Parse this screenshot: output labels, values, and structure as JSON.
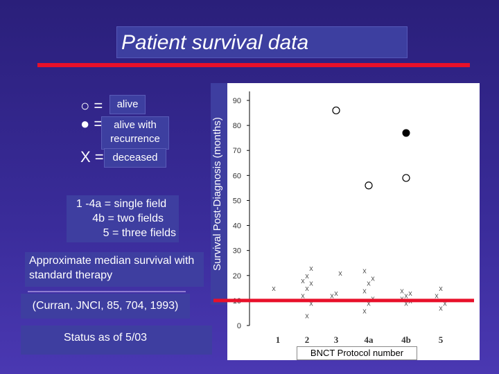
{
  "slide": {
    "title": "Patient survival data",
    "status": "Status as of 5/03",
    "citation": "(Curran, JNCI, 85, 704, 1993)",
    "median_note": "Approximate median survival with standard therapy",
    "fields_note": [
      "1 -4a = single field",
      "4b = two fields",
      "5 = three fields"
    ]
  },
  "legend": [
    {
      "symbol": "○ =",
      "label": "alive"
    },
    {
      "symbol": "● =",
      "label": "alive with recurrence"
    },
    {
      "symbol": "X =",
      "label": "deceased"
    }
  ],
  "colors": {
    "background": "#3a2c9a",
    "accent_red": "#e8102a",
    "box_blue": "#3d3fa0"
  },
  "chart_data": {
    "type": "scatter",
    "xlabel": "BNCT Protocol number",
    "ylabel": "Survival Post-Diagnosis (months)",
    "categories": [
      "1",
      "2",
      "3",
      "4a",
      "4b",
      "5"
    ],
    "ylim": [
      0,
      90
    ],
    "yticks": [
      0,
      10,
      20,
      30,
      40,
      50,
      60,
      70,
      80,
      90
    ],
    "median_survival_line": 10,
    "series": [
      {
        "name": "alive",
        "marker": "open-circle",
        "points": [
          [
            3,
            86
          ],
          [
            4,
            56
          ],
          [
            5,
            59
          ]
        ]
      },
      {
        "name": "alive with recurrence",
        "marker": "filled-circle",
        "points": [
          [
            5,
            77
          ]
        ]
      },
      {
        "name": "deceased",
        "marker": "x",
        "points": [
          [
            1,
            15
          ],
          [
            2,
            4
          ],
          [
            2,
            9
          ],
          [
            2,
            12
          ],
          [
            2,
            15
          ],
          [
            2,
            17
          ],
          [
            2,
            18
          ],
          [
            2,
            20
          ],
          [
            2,
            23
          ],
          [
            3,
            12
          ],
          [
            3,
            13
          ],
          [
            3,
            21
          ],
          [
            4,
            6
          ],
          [
            4,
            9
          ],
          [
            4,
            11
          ],
          [
            4,
            14
          ],
          [
            4,
            17
          ],
          [
            4,
            19
          ],
          [
            4,
            22
          ],
          [
            5,
            9
          ],
          [
            5,
            10
          ],
          [
            5,
            11
          ],
          [
            5,
            12
          ],
          [
            5,
            13
          ],
          [
            5,
            14
          ],
          [
            6,
            7
          ],
          [
            6,
            9
          ],
          [
            6,
            12
          ],
          [
            6,
            15
          ]
        ]
      }
    ]
  }
}
